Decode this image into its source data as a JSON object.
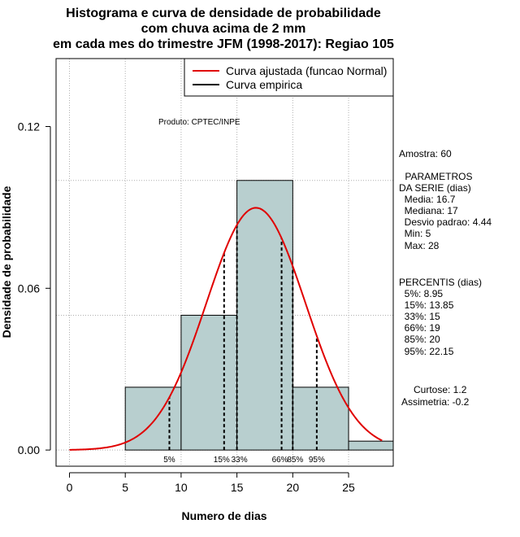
{
  "chart_data": {
    "type": "histogram",
    "title_lines": [
      "Histograma e curva de densidade de probabilidade",
      "com chuva acima de 2 mm",
      "em cada mes do trimestre JFM (1998-2017): Regiao 105"
    ],
    "xlabel": "Numero de dias",
    "ylabel": "Densidade de probabilidade",
    "xlim": [
      -1.2,
      29
    ],
    "ylim": [
      -0.006,
      0.1452
    ],
    "x_ticks": [
      0,
      5,
      10,
      15,
      20,
      25
    ],
    "y_ticks": [
      0.0,
      0.06,
      0.12
    ],
    "y_tick_labels": [
      "0.00",
      "0.06",
      "0.12"
    ],
    "gridlines_x": [
      0,
      5,
      10,
      15,
      20,
      25
    ],
    "gridlines_y": [
      0.0,
      0.05,
      0.1
    ],
    "bins": [
      {
        "from": 5,
        "to": 10,
        "density": 0.0233
      },
      {
        "from": 10,
        "to": 15,
        "density": 0.05
      },
      {
        "from": 15,
        "to": 20,
        "density": 0.1
      },
      {
        "from": 20,
        "to": 25,
        "density": 0.0233
      },
      {
        "from": 25,
        "to": 30,
        "density": 0.0033
      }
    ],
    "normal_fit": {
      "mean": 16.7,
      "sd": 4.44,
      "from": 0,
      "to": 28
    },
    "percentiles": [
      {
        "label": "5%",
        "value": 8.95
      },
      {
        "label": "15%",
        "value": 13.85
      },
      {
        "label": "33%",
        "value": 15
      },
      {
        "label": "66%",
        "value": 19
      },
      {
        "label": "85%",
        "value": 20
      },
      {
        "label": "95%",
        "value": 22.15
      }
    ],
    "legend": [
      {
        "label": "Curva ajustada (funcao Normal)",
        "color": "#e00000"
      },
      {
        "label": "Curva empirica",
        "color": "#000000"
      }
    ],
    "colors": {
      "bars": "#b8cfcf",
      "fit": "#e00000",
      "grid": "#b0b0b0"
    }
  },
  "annotations": {
    "product": "Produto: CPTEC/INPE",
    "stats_lines": [
      "Amostra: 60",
      " PARAMETROS",
      "DA SERIE (dias)",
      "  Media: 16.7",
      "  Mediana: 17",
      "  Desvio padrao: 4.44",
      "  Min: 5",
      "  Max: 28",
      "PERCENTIS (dias)",
      "  5%: 8.95",
      "  15%: 13.85",
      "  33%: 15",
      "  66%: 19",
      "  85%: 20",
      "  95%: 22.15",
      "Curtose: 1.2",
      "Assimetria: -0.2"
    ]
  }
}
